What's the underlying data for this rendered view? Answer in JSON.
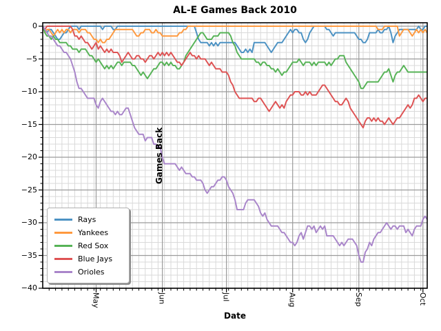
{
  "title": "AL-E Games Back 2010",
  "x_axis": {
    "label": "Date",
    "tick_labels": [
      "May",
      "Jun",
      "Jul",
      "Aug",
      "Sep",
      "Oct"
    ],
    "tick_day_offsets": [
      25,
      56,
      86,
      117,
      148,
      178
    ],
    "minor_grid_interval_days": 3,
    "range_days": [
      0,
      180
    ]
  },
  "y_axis": {
    "label": "Games Back",
    "tick_labels": [
      "0",
      "−5",
      "−10",
      "−15",
      "−20",
      "−25",
      "−30",
      "−35",
      "−40"
    ],
    "tick_values": [
      0,
      -5,
      -10,
      -15,
      -20,
      -25,
      -30,
      -35,
      -40
    ],
    "minor_grid_interval": 1,
    "range": [
      0.5,
      -40
    ]
  },
  "legend": {
    "entries": [
      {
        "label": "Rays",
        "color": "#4C92C3"
      },
      {
        "label": "Yankees",
        "color": "#FF993E"
      },
      {
        "label": "Red Sox",
        "color": "#56B356"
      },
      {
        "label": "Blue Jays",
        "color": "#DE5253"
      },
      {
        "label": "Orioles",
        "color": "#A985CA"
      }
    ]
  },
  "style": {
    "grid_major_color": "#9b9b9b",
    "grid_minor_color": "#d9d9d9",
    "spine_color": "#000000",
    "background": "#ffffff",
    "line_width": 2
  },
  "chart_data": {
    "type": "line",
    "title": "AL-E Games Back 2010",
    "xlabel": "Date",
    "ylabel": "Games Back",
    "x_unit": "days (daily points, early April through Oct 3)",
    "x_month_ticks": {
      "May": 25,
      "Jun": 56,
      "Jul": 86,
      "Aug": 117,
      "Sep": 148,
      "Oct": 178
    },
    "ylim": [
      0.5,
      -40
    ],
    "grid": "major+minor",
    "legend_position": "lower-left",
    "series": [
      {
        "name": "Rays",
        "color": "#4C92C3",
        "values": [
          0,
          -0.5,
          -1,
          -0.5,
          -0.5,
          -1,
          -1.5,
          -2,
          -2,
          -1.5,
          -1,
          -1,
          -0.5,
          0,
          0,
          0,
          0,
          -0.5,
          0,
          0,
          0,
          0,
          0,
          0,
          0,
          0,
          0,
          0,
          -0.5,
          0,
          0,
          0,
          0,
          -0.5,
          -0.5,
          0,
          0,
          0,
          0,
          0,
          0,
          0,
          0,
          0,
          0,
          0,
          0,
          0,
          0,
          0,
          0,
          0,
          0,
          0,
          0,
          0,
          0,
          0,
          0,
          0,
          0,
          0,
          0,
          0,
          0,
          0,
          0,
          0,
          0,
          0,
          0,
          0,
          -1,
          -2,
          -2.5,
          -2.5,
          -2.5,
          -2.5,
          -3,
          -2.5,
          -3,
          -2.5,
          -3,
          -2.5,
          -2.5,
          -2.5,
          -2.5,
          -2.5,
          -2.5,
          -2.5,
          -2.5,
          -3,
          -3.5,
          -4,
          -4,
          -3.5,
          -4,
          -3.5,
          -4,
          -2.5,
          -2.5,
          -2.5,
          -2.5,
          -2.5,
          -2.5,
          -3,
          -3.5,
          -4,
          -3.5,
          -3,
          -2.5,
          -2.5,
          -2.5,
          -2,
          -1.5,
          -1,
          -0.5,
          -1,
          -0.5,
          -0.5,
          -1,
          -1,
          -2,
          -2.5,
          -2,
          -1,
          -0.5,
          0,
          0,
          0,
          0,
          0,
          0,
          -0.5,
          -0.5,
          -1,
          -1.5,
          -1,
          -1,
          -1,
          -1,
          -1,
          -1,
          -1,
          -1,
          -1,
          -1,
          -1.5,
          -2,
          -2,
          -2.5,
          -2.5,
          -2,
          -1,
          -1,
          -1,
          -1,
          -0.5,
          -1,
          -1,
          -0.5,
          -0.5,
          0,
          -1,
          -2.5,
          -1.5,
          -1,
          -0.5,
          -0.5,
          -0.5,
          -0.5,
          -0.5,
          -0.5,
          -0.5,
          -0.5,
          -0.5,
          0,
          -0.5,
          -0.5,
          0,
          0
        ]
      },
      {
        "name": "Yankees",
        "color": "#FF993E",
        "values": [
          0,
          -1,
          -0.5,
          -0.5,
          -1,
          -1.5,
          -1,
          -0.5,
          -1,
          -0.5,
          -1,
          -0.5,
          -0.5,
          -1,
          -0.5,
          -0.5,
          -0.5,
          -1,
          -0.5,
          -0.5,
          -0.5,
          -1,
          -1,
          -1.5,
          -2,
          -2,
          -2.5,
          -2,
          -2.5,
          -2.5,
          -2,
          -2,
          -1.5,
          -1,
          -0.5,
          -0.5,
          -0.5,
          -0.5,
          -0.5,
          -0.5,
          -0.5,
          -0.5,
          -0.5,
          -1,
          -1.5,
          -1.5,
          -1,
          -1,
          -0.5,
          -0.5,
          -0.5,
          -1,
          -1,
          -0.5,
          -1,
          -1,
          -1.5,
          -1.5,
          -1.5,
          -1.5,
          -1.5,
          -1.5,
          -1.5,
          -1.5,
          -1,
          -1,
          -0.5,
          -0.5,
          0,
          0,
          0,
          0,
          0,
          0,
          0,
          0,
          0,
          0,
          0,
          0,
          0,
          0,
          0,
          0,
          0,
          0,
          0,
          0,
          0,
          0,
          0,
          0,
          0,
          0,
          0,
          0,
          0,
          0,
          0,
          0,
          0,
          0,
          0,
          0,
          0,
          0,
          0,
          0,
          0,
          0,
          0,
          0,
          0,
          0,
          0,
          0,
          0,
          0,
          0,
          0,
          0,
          0,
          0,
          0,
          0,
          0,
          0,
          0,
          0,
          0,
          0,
          0,
          0,
          0,
          0,
          0,
          0,
          0,
          0,
          0,
          0,
          0,
          0,
          0,
          0,
          0,
          0,
          0,
          0,
          0,
          0,
          0,
          0,
          0,
          0,
          0,
          0,
          -0.5,
          -0.5,
          -0.5,
          0,
          0,
          0,
          0,
          0,
          0,
          0,
          -1.5,
          -1,
          -0.5,
          -0.5,
          -0.5,
          -1,
          -1.5,
          -1,
          -0.5,
          -1,
          -0.5,
          -1,
          -0.5,
          -1
        ]
      },
      {
        "name": "Red Sox",
        "color": "#56B356",
        "values": [
          0,
          -1,
          -1.5,
          -1.5,
          -2,
          -1.5,
          -2,
          -2,
          -2.5,
          -2.5,
          -2.5,
          -2.5,
          -3,
          -3,
          -3.5,
          -3.5,
          -3.5,
          -4,
          -3.5,
          -3.5,
          -3.5,
          -4,
          -4.5,
          -4.5,
          -5,
          -5.5,
          -5,
          -5.5,
          -6,
          -6.5,
          -6,
          -6.5,
          -6,
          -6.5,
          -6,
          -5.5,
          -5.5,
          -6,
          -5.5,
          -5.5,
          -5.5,
          -5.5,
          -6,
          -6,
          -6.5,
          -7,
          -7.5,
          -7,
          -7.5,
          -8,
          -7.5,
          -7,
          -6.5,
          -6.5,
          -6,
          -5.5,
          -5.5,
          -6,
          -5.5,
          -6,
          -5.5,
          -6,
          -6,
          -6.5,
          -6.5,
          -6,
          -5.5,
          -4.5,
          -4,
          -3.5,
          -3,
          -2.5,
          -2,
          -1.5,
          -1,
          -1,
          -1.5,
          -2,
          -2,
          -2,
          -1.5,
          -1.5,
          -1.5,
          -1,
          -1,
          -1,
          -1,
          -1,
          -1.5,
          -2.5,
          -3,
          -4,
          -4.5,
          -5,
          -5,
          -5,
          -5,
          -5,
          -5,
          -5,
          -5.5,
          -5.5,
          -6,
          -5.5,
          -5.5,
          -6,
          -6,
          -6.5,
          -6.5,
          -7,
          -6.5,
          -7,
          -7.5,
          -7,
          -7,
          -6.5,
          -6,
          -5.5,
          -5.5,
          -5.5,
          -5,
          -5.5,
          -6,
          -5.5,
          -5.5,
          -5.5,
          -6,
          -5.5,
          -6,
          -5.5,
          -5.5,
          -5.5,
          -5.5,
          -6,
          -5.5,
          -6,
          -5.5,
          -5,
          -5,
          -4.5,
          -4.5,
          -4.5,
          -5.5,
          -6,
          -6.5,
          -7,
          -7.5,
          -8,
          -8.5,
          -9.5,
          -9.5,
          -9,
          -8.5,
          -8.5,
          -8.5,
          -8.5,
          -8.5,
          -8.5,
          -8,
          -7.5,
          -7,
          -7,
          -6.5,
          -7.5,
          -8.5,
          -7.5,
          -7,
          -7,
          -6.5,
          -6,
          -6.5,
          -7,
          -7,
          -7,
          -7,
          -7,
          -7,
          -7,
          -7,
          -7,
          -7
        ]
      },
      {
        "name": "Blue Jays",
        "color": "#DE5253",
        "values": [
          0,
          -0.5,
          0,
          0,
          0,
          0,
          0,
          0,
          0,
          0,
          0,
          0,
          0,
          0,
          -0.5,
          -1.5,
          -1.5,
          -2,
          -1.5,
          -2,
          -2.5,
          -2.5,
          -3,
          -3.5,
          -3,
          -2.5,
          -3.5,
          -3,
          -3.5,
          -4,
          -3.5,
          -4,
          -3.5,
          -4,
          -4,
          -4,
          -4.5,
          -5.5,
          -5,
          -4.5,
          -4,
          -4.5,
          -5,
          -5,
          -4.5,
          -4.5,
          -5,
          -5,
          -5.5,
          -5,
          -4.5,
          -4.5,
          -5,
          -4.5,
          -4,
          -4.5,
          -4,
          -4.5,
          -4,
          -4.5,
          -4,
          -4.5,
          -5,
          -5.5,
          -5.5,
          -6,
          -5.5,
          -5,
          -4.5,
          -4,
          -4.5,
          -4.5,
          -5,
          -4.5,
          -5,
          -5,
          -5,
          -5.5,
          -6,
          -5.5,
          -6,
          -6.5,
          -6.5,
          -6.5,
          -7,
          -7,
          -7,
          -7.5,
          -8.5,
          -9,
          -10,
          -10.5,
          -11,
          -11,
          -11,
          -11,
          -11,
          -11,
          -11,
          -11.5,
          -11.5,
          -11,
          -11,
          -11.5,
          -12,
          -12.5,
          -13,
          -12.5,
          -12,
          -11.5,
          -12,
          -12.5,
          -12,
          -12.5,
          -11.5,
          -11,
          -10.5,
          -10.5,
          -10,
          -10,
          -10,
          -10.5,
          -10.5,
          -10,
          -10.5,
          -10,
          -10.5,
          -10.5,
          -10.5,
          -10,
          -9.5,
          -9,
          -9,
          -9.5,
          -10,
          -10.5,
          -11,
          -11.5,
          -11.5,
          -12,
          -12,
          -11.5,
          -11,
          -11.5,
          -12.5,
          -13,
          -13.5,
          -14,
          -14.5,
          -15,
          -15.5,
          -14.5,
          -14,
          -14,
          -14.5,
          -14,
          -14.5,
          -14,
          -14.5,
          -14.5,
          -15,
          -14.5,
          -14,
          -14.5,
          -15,
          -14.5,
          -14,
          -14,
          -13.5,
          -13,
          -12.5,
          -12,
          -12.5,
          -12,
          -11,
          -11,
          -10.5,
          -11,
          -11.5,
          -11,
          -11
        ]
      },
      {
        "name": "Orioles",
        "color": "#A985CA",
        "values": [
          0,
          -0.5,
          -1,
          -1.5,
          -1.5,
          -2,
          -2.5,
          -3,
          -3,
          -3.5,
          -4,
          -4,
          -4.5,
          -5,
          -6,
          -7,
          -8.5,
          -9.5,
          -9.5,
          -10,
          -10.5,
          -11,
          -11,
          -11,
          -11,
          -12,
          -12.5,
          -11.5,
          -11,
          -11.5,
          -12,
          -12.5,
          -13,
          -13,
          -13.5,
          -13,
          -13.5,
          -13.5,
          -13,
          -12.5,
          -12.5,
          -13.5,
          -14.5,
          -15.5,
          -16,
          -16.5,
          -16.5,
          -16.5,
          -17.5,
          -17,
          -17,
          -17,
          -18,
          -18,
          -18.5,
          -18.5,
          -20,
          -21,
          -21,
          -21,
          -21,
          -21,
          -21,
          -21.5,
          -22,
          -21.5,
          -22,
          -22.5,
          -22.5,
          -22.5,
          -23,
          -23,
          -23.5,
          -23.5,
          -23.5,
          -24,
          -25,
          -25.5,
          -25,
          -24.5,
          -24.5,
          -24,
          -23.5,
          -23.5,
          -23,
          -23,
          -23.5,
          -24.5,
          -25,
          -25.5,
          -26.5,
          -28,
          -28,
          -28,
          -28,
          -27,
          -26.5,
          -26.5,
          -26.5,
          -26.5,
          -27,
          -27.5,
          -28.5,
          -29,
          -28.5,
          -29.5,
          -30,
          -30.5,
          -30.5,
          -30.5,
          -30.5,
          -31,
          -31.5,
          -31.5,
          -32,
          -32.5,
          -33,
          -33,
          -33.5,
          -33,
          -32,
          -31.5,
          -32.5,
          -31.5,
          -30.5,
          -30.5,
          -31,
          -30.5,
          -31.5,
          -31,
          -30.5,
          -31,
          -30.5,
          -32,
          -32,
          -32,
          -32,
          -32.5,
          -33,
          -33.5,
          -33,
          -33.5,
          -33,
          -32.5,
          -32.5,
          -32.5,
          -33,
          -33.5,
          -35,
          -36,
          -36,
          -34.5,
          -34,
          -33,
          -33.5,
          -32.5,
          -32,
          -31.5,
          -31.5,
          -31,
          -30.5,
          -30,
          -30.5,
          -31,
          -30.5,
          -30.5,
          -31,
          -30.5,
          -30.5,
          -30.5,
          -31.5,
          -31,
          -31.5,
          -32,
          -31,
          -30.5,
          -30.5,
          -30.5,
          -29.5,
          -29,
          -29.5
        ]
      }
    ]
  }
}
